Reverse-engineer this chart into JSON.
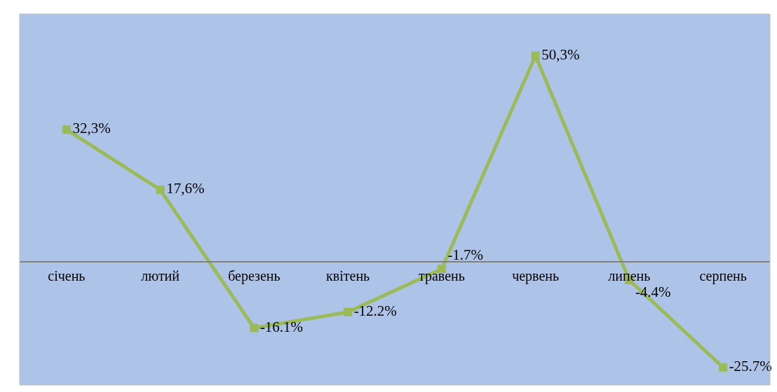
{
  "chart_data": {
    "type": "line",
    "categories": [
      "січень",
      "лютий",
      "березень",
      "квітень",
      "травень",
      "червень",
      "липень",
      "серпень"
    ],
    "series": [
      {
        "color": "#9bbb59",
        "values": [
          32.3,
          17.6,
          -16.1,
          -12.2,
          -1.7,
          50.3,
          -4.4,
          -25.7
        ],
        "value_labels": [
          "32,3%",
          "17,6%",
          "-16.1%",
          "-12.2%",
          "-1.7%",
          "50,3%",
          "-4.4%",
          "-25.7%"
        ]
      }
    ],
    "ylim": [
      -30,
      60.5
    ],
    "marker": "square",
    "line_style": "solid",
    "grid": false
  }
}
